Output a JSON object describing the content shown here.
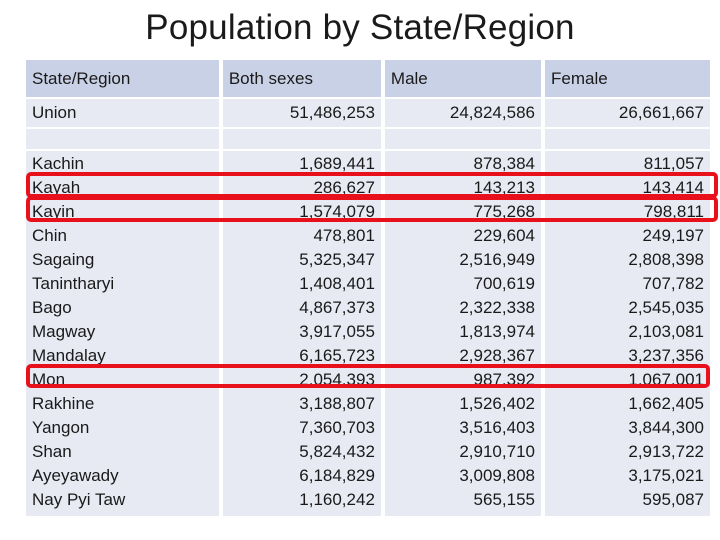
{
  "title": "Population by State/Region",
  "columns": [
    "State/Region",
    "Both sexes",
    "Male",
    "Female"
  ],
  "union": {
    "name": "Union",
    "both": "51,486,253",
    "male": "24,824,586",
    "female": "26,661,667"
  },
  "rows": [
    {
      "name": "Kachin",
      "both": "1,689,441",
      "male": "878,384",
      "female": "811,057"
    },
    {
      "name": "Kayah",
      "both": "286,627",
      "male": "143,213",
      "female": "143,414"
    },
    {
      "name": "Kayin",
      "both": "1,574,079",
      "male": "775,268",
      "female": "798,811"
    },
    {
      "name": "Chin",
      "both": "478,801",
      "male": "229,604",
      "female": "249,197"
    },
    {
      "name": "Sagaing",
      "both": "5,325,347",
      "male": "2,516,949",
      "female": "2,808,398"
    },
    {
      "name": "Tanintharyi",
      "both": "1,408,401",
      "male": "700,619",
      "female": "707,782"
    },
    {
      "name": "Bago",
      "both": "4,867,373",
      "male": "2,322,338",
      "female": "2,545,035"
    },
    {
      "name": "Magway",
      "both": "3,917,055",
      "male": "1,813,974",
      "female": "2,103,081"
    },
    {
      "name": "Mandalay",
      "both": "6,165,723",
      "male": "2,928,367",
      "female": "3,237,356"
    },
    {
      "name": "Mon",
      "both": "2,054,393",
      "male": "987,392",
      "female": "1,067,001"
    },
    {
      "name": "Rakhine",
      "both": "3,188,807",
      "male": "1,526,402",
      "female": "1,662,405"
    },
    {
      "name": "Yangon",
      "both": "7,360,703",
      "male": "3,516,403",
      "female": "3,844,300"
    },
    {
      "name": "Shan",
      "both": "5,824,432",
      "male": "2,910,710",
      "female": "2,913,722"
    },
    {
      "name": "Ayeyawady",
      "both": "6,184,829",
      "male": "3,009,808",
      "female": "3,175,021"
    },
    {
      "name": "Nay Pyi Taw",
      "both": "1,160,242",
      "male": "565,155",
      "female": "595,087"
    }
  ],
  "highlight_color": "#e8101b",
  "header_color": "#c9d1e6",
  "band_color": "#e7eaf3"
}
